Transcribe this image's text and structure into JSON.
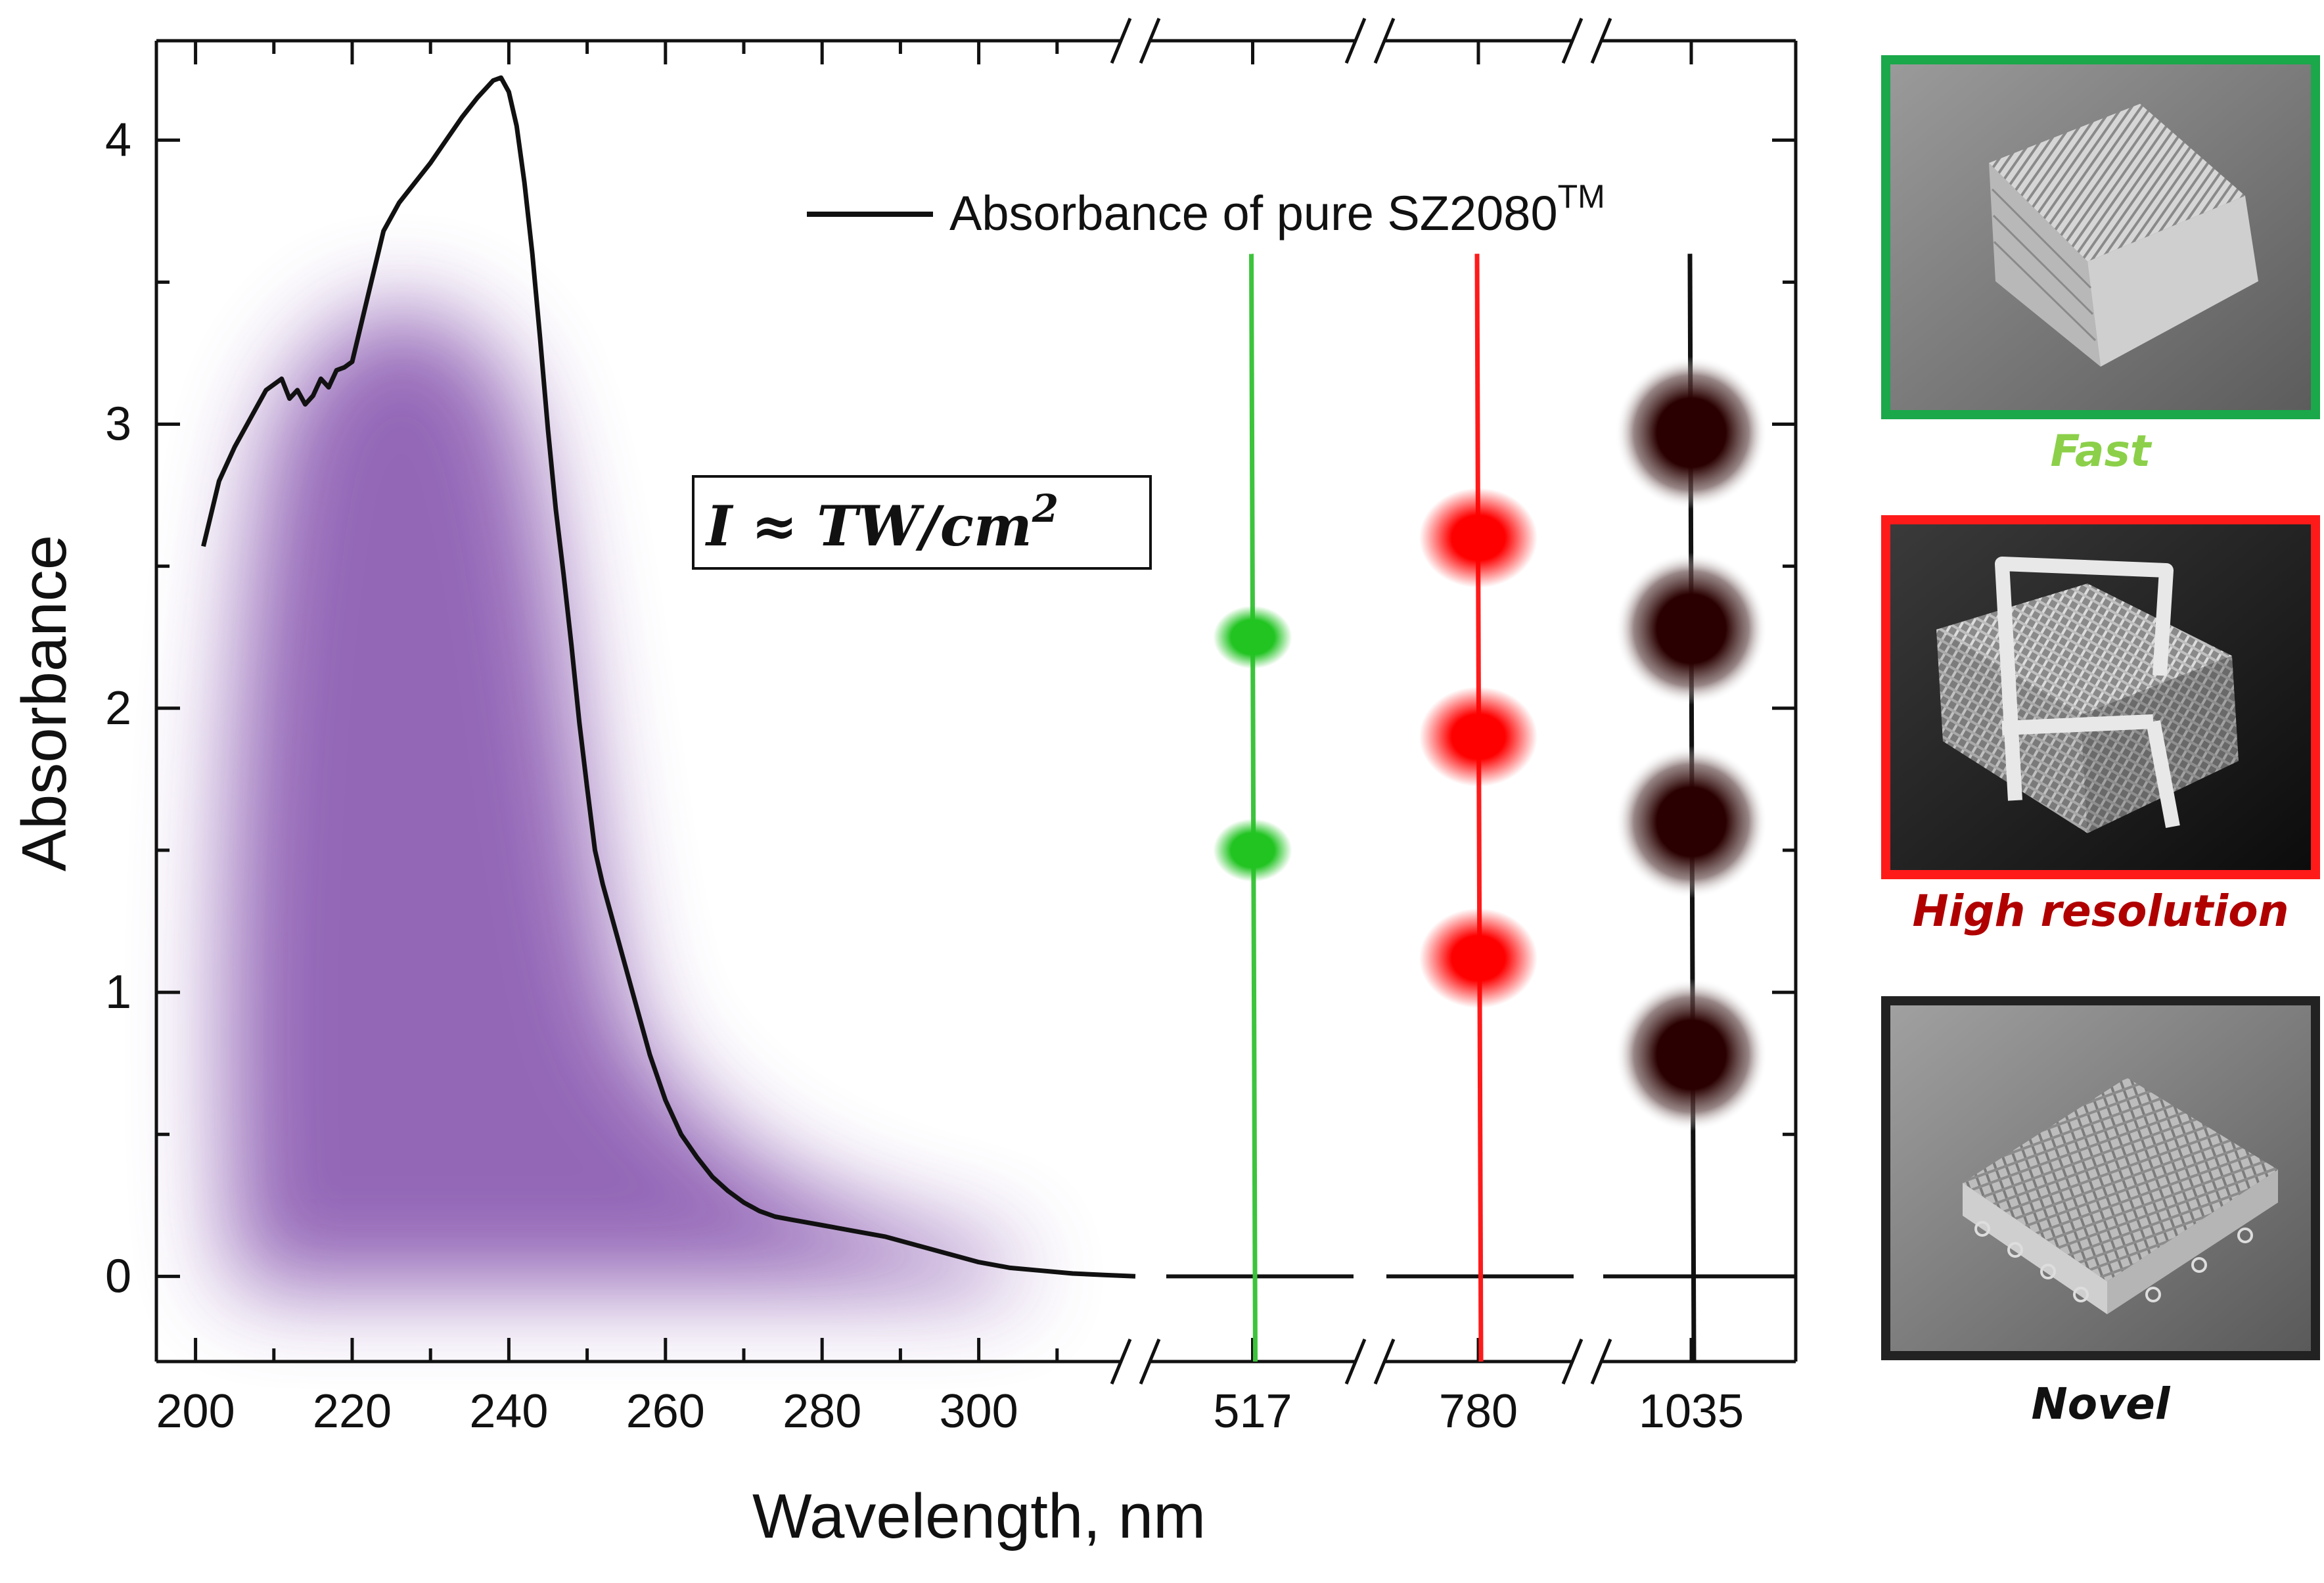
{
  "chart_data": {
    "type": "line",
    "title": "",
    "xlabel": "Wavelength, nm",
    "ylabel": "Absorbance",
    "ylim": [
      -0.3,
      4.35
    ],
    "yticks": [
      0,
      1,
      2,
      3,
      4
    ],
    "ytick_labels": [
      "0",
      "1",
      "2",
      "3",
      "4"
    ],
    "x_axis_broken": true,
    "x_segments": [
      {
        "range": [
          195,
          320
        ],
        "ticks": [
          200,
          220,
          240,
          260,
          280,
          300
        ],
        "tick_labels": [
          "200",
          "220",
          "240",
          "260",
          "280",
          "300"
        ]
      },
      {
        "range": [
          497,
          537
        ],
        "ticks": [
          517
        ],
        "tick_labels": [
          "517"
        ]
      },
      {
        "range": [
          760,
          800
        ],
        "ticks": [
          780
        ],
        "tick_labels": [
          "780"
        ]
      },
      {
        "range": [
          1015,
          1055
        ],
        "ticks": [
          1035
        ],
        "tick_labels": [
          "1035"
        ]
      }
    ],
    "legend": {
      "placement": "top-right",
      "label_main": "Absorbance of pure SZ2080",
      "label_sup": "TM"
    },
    "annotation": {
      "label_main": "I  ≈ TW/cm",
      "label_sup": "2"
    },
    "series": [
      {
        "name": "Absorbance of pure SZ2080TM",
        "color": "#111111",
        "x": [
          201,
          203,
          205,
          207,
          209,
          211,
          212,
          213,
          214,
          215,
          216,
          217,
          218,
          219,
          220,
          222,
          224,
          226,
          228,
          230,
          232,
          234,
          236,
          238,
          239,
          240,
          241,
          242,
          243,
          244,
          245,
          246,
          247,
          248,
          249,
          250,
          251,
          252,
          254,
          256,
          258,
          260,
          262,
          264,
          266,
          268,
          270,
          272,
          274,
          276,
          278,
          280,
          284,
          288,
          292,
          296,
          300,
          304,
          308,
          312,
          316,
          320
        ],
        "y": [
          2.57,
          2.8,
          2.92,
          3.02,
          3.12,
          3.16,
          3.09,
          3.12,
          3.07,
          3.1,
          3.16,
          3.13,
          3.19,
          3.2,
          3.22,
          3.45,
          3.68,
          3.78,
          3.85,
          3.92,
          4.0,
          4.08,
          4.15,
          4.21,
          4.22,
          4.17,
          4.05,
          3.85,
          3.6,
          3.3,
          2.98,
          2.7,
          2.47,
          2.22,
          1.95,
          1.72,
          1.5,
          1.38,
          1.18,
          0.98,
          0.78,
          0.62,
          0.5,
          0.42,
          0.35,
          0.3,
          0.26,
          0.23,
          0.21,
          0.2,
          0.19,
          0.18,
          0.16,
          0.14,
          0.11,
          0.08,
          0.05,
          0.03,
          0.02,
          0.01,
          0.005,
          0.0
        ]
      },
      {
        "name": "517",
        "color": "#3cc43c",
        "x": [
          517,
          517
        ],
        "y": [
          3.6,
          -0.3
        ],
        "spots_y": [
          2.25,
          1.5
        ],
        "spot_color": "#22c422"
      },
      {
        "name": "780",
        "color": "#ff1a1a",
        "x": [
          780,
          780
        ],
        "y": [
          3.6,
          -0.3
        ],
        "spots_y": [
          2.6,
          1.9,
          1.12
        ],
        "spot_color": "#ff0000"
      },
      {
        "name": "1035",
        "color": "#111111",
        "x": [
          1035,
          1035
        ],
        "y": [
          3.6,
          -0.3
        ],
        "spots_y": [
          2.97,
          2.28,
          1.6,
          0.78
        ],
        "spot_color": "#2a0000"
      }
    ]
  },
  "panels": [
    {
      "label": "Fast",
      "label_color": "#8cd04a",
      "border_color": "#1aa84a",
      "sem_style": "stacked-block"
    },
    {
      "label": "High resolution",
      "label_color": "#b00000",
      "border_color": "#ff1a1a",
      "sem_style": "frame-block"
    },
    {
      "label": "Novel",
      "label_color": "#111111",
      "border_color": "#222222",
      "sem_style": "grid-block"
    }
  ]
}
